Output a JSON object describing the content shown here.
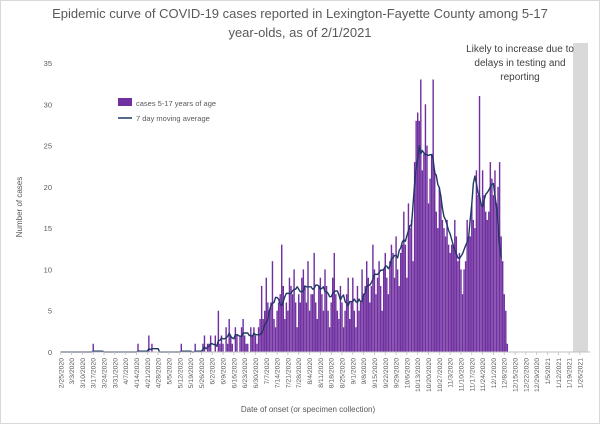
{
  "chart_data": {
    "type": "bar",
    "title": "Epidemic curve of COVID-19 cases reported in Lexington-Fayette County among 5-17 year-olds, as of 2/1/2021",
    "xlabel": "Date of onset (or specimen collection)",
    "ylabel": "Number of cases",
    "ylim": [
      0,
      35
    ],
    "yticks": [
      0,
      5,
      10,
      15,
      20,
      25,
      30,
      35
    ],
    "x_start": "2020-02-25",
    "x_end": "2021-02-01",
    "x_tick_labels": [
      "2/25/2020",
      "3/3/2020",
      "3/10/2020",
      "3/17/2020",
      "3/24/2020",
      "3/31/2020",
      "4/7/2020",
      "4/14/2020",
      "4/21/2020",
      "4/28/2020",
      "5/5/2020",
      "5/12/2020",
      "5/19/2020",
      "5/26/2020",
      "6/2/2020",
      "6/9/2020",
      "6/16/2020",
      "6/23/2020",
      "6/30/2020",
      "7/7/2020",
      "7/14/2020",
      "7/21/2020",
      "7/28/2020",
      "8/4/2020",
      "8/11/2020",
      "8/18/2020",
      "8/25/2020",
      "9/1/2020",
      "9/8/2020",
      "9/15/2020",
      "9/22/2020",
      "9/29/2020",
      "10/6/2020",
      "10/13/2020",
      "10/20/2020",
      "10/27/2020",
      "11/3/2020",
      "11/10/2020",
      "11/17/2020",
      "11/24/2020",
      "12/1/2020",
      "12/8/2020",
      "12/15/2020",
      "12/22/2020",
      "12/29/2020",
      "1/5/2021",
      "1/12/2021",
      "1/19/2021",
      "1/26/2021"
    ],
    "grid": false,
    "legend_position": "upper-left",
    "annotation": {
      "text": [
        "Likely to increase due to",
        "delays in testing and",
        "reporting"
      ],
      "shaded_from": "2021-01-22"
    },
    "colors": {
      "bar": "#7030a0",
      "line": "#1f3864",
      "shade": "#d9d9d9",
      "axis": "#bfbfbf",
      "text": "#595959"
    },
    "series": [
      {
        "name": "cases 5-17 years of age",
        "type": "bar",
        "values": [
          0,
          0,
          0,
          0,
          0,
          0,
          0,
          0,
          0,
          0,
          0,
          0,
          0,
          0,
          0,
          0,
          0,
          0,
          0,
          0,
          0,
          1,
          0,
          0,
          0,
          0,
          0,
          0,
          0,
          0,
          0,
          0,
          0,
          0,
          0,
          0,
          0,
          0,
          0,
          0,
          0,
          0,
          0,
          0,
          0,
          0,
          0,
          0,
          0,
          0,
          1,
          0,
          0,
          0,
          0,
          0,
          0,
          2,
          0,
          1,
          0,
          0,
          0,
          0,
          0,
          0,
          0,
          0,
          0,
          0,
          0,
          0,
          0,
          0,
          0,
          0,
          0,
          0,
          1,
          0,
          0,
          0,
          0,
          0,
          0,
          0,
          0,
          1,
          0,
          0,
          0,
          0,
          1,
          2,
          0,
          1,
          1,
          2,
          0,
          0,
          2,
          0,
          5,
          1,
          2,
          1,
          0,
          3,
          1,
          4,
          2,
          1,
          0,
          3,
          2,
          0,
          2,
          3,
          4,
          2,
          1,
          1,
          0,
          3,
          2,
          3,
          2,
          1,
          3,
          4,
          8,
          4,
          5,
          9,
          6,
          5,
          6,
          11,
          4,
          3,
          5,
          6,
          7,
          13,
          8,
          4,
          6,
          5,
          9,
          8,
          7,
          10,
          6,
          3,
          7,
          6,
          9,
          10,
          8,
          6,
          11,
          5,
          7,
          7,
          12,
          6,
          4,
          8,
          9,
          7,
          5,
          10,
          8,
          5,
          3,
          6,
          9,
          12,
          7,
          5,
          4,
          8,
          6,
          3,
          5,
          7,
          9,
          4,
          6,
          9,
          5,
          3,
          8,
          5,
          6,
          10,
          7,
          8,
          11,
          9,
          6,
          8,
          13,
          10,
          7,
          9,
          11,
          8,
          5,
          10,
          12,
          9,
          7,
          11,
          13,
          12,
          9,
          14,
          10,
          8,
          12,
          13,
          17,
          13,
          9,
          18,
          15,
          16,
          11,
          23,
          28,
          29,
          28,
          33,
          22,
          24,
          30,
          25,
          18,
          21,
          24,
          33,
          22,
          17,
          15,
          20,
          19,
          16,
          15,
          14,
          16,
          13,
          12,
          13,
          13,
          16,
          14,
          11,
          12,
          10,
          7,
          10,
          11,
          16,
          14,
          14,
          18,
          16,
          15,
          22,
          19,
          31,
          18,
          22,
          19,
          17,
          16,
          17,
          23,
          21,
          19,
          22,
          18,
          20,
          23,
          14,
          11,
          7,
          5,
          1
        ]
      },
      {
        "name": "7 day moving average",
        "type": "line",
        "values": [
          0,
          0,
          0,
          0,
          0,
          0,
          0,
          0,
          0,
          0,
          0,
          0,
          0,
          0,
          0,
          0,
          0,
          0,
          0,
          0,
          0,
          0.1,
          0.1,
          0.1,
          0.1,
          0.1,
          0.1,
          0.1,
          0,
          0,
          0,
          0,
          0,
          0,
          0,
          0,
          0,
          0,
          0,
          0,
          0,
          0,
          0,
          0,
          0,
          0,
          0,
          0,
          0,
          0,
          0.1,
          0.1,
          0.1,
          0.1,
          0.1,
          0.1,
          0.1,
          0.4,
          0.3,
          0.4,
          0.4,
          0.4,
          0.4,
          0.4,
          0,
          0,
          0,
          0,
          0,
          0,
          0,
          0,
          0,
          0,
          0,
          0,
          0,
          0,
          0.1,
          0.1,
          0.1,
          0.1,
          0.1,
          0.1,
          0.1,
          0,
          0,
          0.1,
          0.1,
          0.1,
          0.1,
          0.1,
          0.3,
          0.6,
          0.4,
          0.6,
          0.7,
          1,
          1,
          0.9,
          0.9,
          0.7,
          1.4,
          1.4,
          1.7,
          1.6,
          1.6,
          1.7,
          1.9,
          2.3,
          1.9,
          1.7,
          1.6,
          2.1,
          2.1,
          2,
          1.9,
          1.9,
          2.3,
          2.3,
          2.3,
          2.3,
          2,
          2,
          1.9,
          2.3,
          2.1,
          2.1,
          2.1,
          2.1,
          2.3,
          2.7,
          3.3,
          3.6,
          4,
          5,
          5.6,
          5.9,
          6,
          6.6,
          6.6,
          6.4,
          5.8,
          5.6,
          6.1,
          6.7,
          7.1,
          7.1,
          7.1,
          7.1,
          7.4,
          7.6,
          7.6,
          7.9,
          7.6,
          7.3,
          7.3,
          7.4,
          8,
          7.9,
          7.9,
          7.9,
          7.9,
          7.6,
          7.7,
          8.1,
          8.1,
          8,
          7.6,
          7.7,
          7.9,
          7.3,
          7.3,
          7.1,
          6.7,
          6.7,
          7.1,
          7.3,
          7.4,
          7.4,
          6.9,
          6.3,
          6.7,
          6.9,
          6.1,
          5.9,
          5.6,
          6.1,
          6.1,
          6.1,
          6.4,
          6.1,
          6,
          6.4,
          6.1,
          6.1,
          7,
          7.1,
          7.9,
          8.1,
          8.1,
          8.4,
          8.8,
          9.4,
          9.4,
          9.4,
          9.6,
          9.9,
          9.9,
          10,
          10.4,
          10.4,
          10.1,
          10.4,
          11.3,
          11.4,
          11.7,
          11.7,
          11.4,
          12.3,
          12.6,
          13.3,
          13.6,
          13.4,
          14.1,
          14.7,
          15.3,
          15.4,
          17.9,
          20.4,
          22.3,
          23.4,
          25,
          24,
          24.4,
          24.1,
          23.9,
          23.9,
          23.8,
          23.9,
          23.9,
          23.3,
          21.7,
          21.4,
          20.3,
          19.9,
          18.8,
          17.4,
          16.4,
          16,
          15.4,
          14.7,
          14.3,
          13.6,
          12.9,
          12.4,
          11.9,
          11.4,
          11.3,
          11.6,
          11.9,
          12.4,
          12.9,
          13.3,
          14,
          16.1,
          17.9,
          20.4,
          21.3,
          20.4,
          19.3,
          18.9,
          17.9,
          17.6,
          18.4,
          19.1,
          19.3,
          19.6,
          20,
          20.3,
          20.4,
          18.9,
          17.6,
          15.5,
          12.9,
          11.4
        ]
      }
    ]
  }
}
